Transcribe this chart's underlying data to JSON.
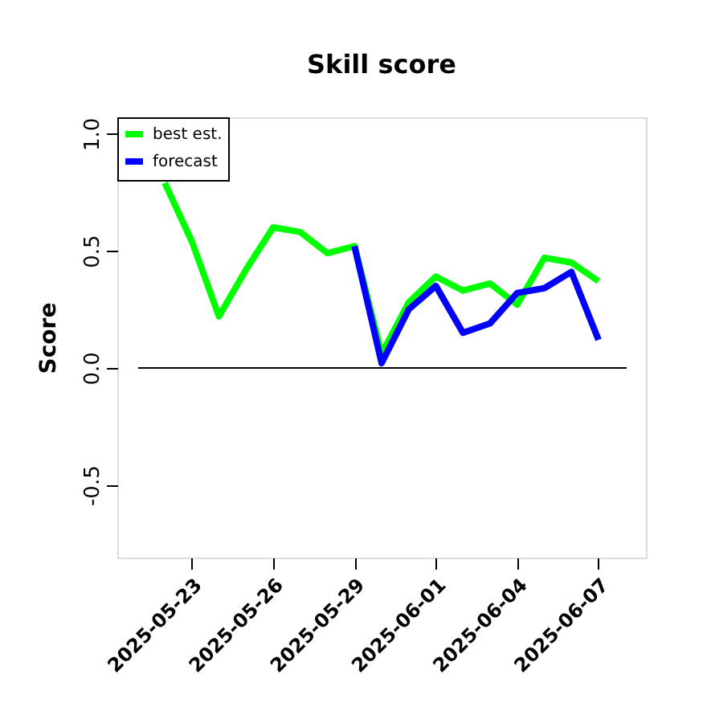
{
  "chart_data": {
    "type": "line",
    "title": "Skill score",
    "ylabel": "Score",
    "x": [
      "2025-05-22",
      "2025-05-23",
      "2025-05-24",
      "2025-05-25",
      "2025-05-26",
      "2025-05-27",
      "2025-05-28",
      "2025-05-29",
      "2025-05-30",
      "2025-05-31",
      "2025-06-01",
      "2025-06-02",
      "2025-06-03",
      "2025-06-04",
      "2025-06-05",
      "2025-06-06",
      "2025-06-07"
    ],
    "series": [
      {
        "name": "best est.",
        "color": "#00ff00",
        "values": [
          0.79,
          0.54,
          0.22,
          0.42,
          0.6,
          0.58,
          0.49,
          0.52,
          0.06,
          0.28,
          0.39,
          0.33,
          0.36,
          0.27,
          0.47,
          0.45,
          0.37
        ]
      },
      {
        "name": "forecast",
        "color": "#0000ff",
        "x": [
          "2025-05-29",
          "2025-05-30",
          "2025-05-31",
          "2025-06-01",
          "2025-06-02",
          "2025-06-03",
          "2025-06-04",
          "2025-06-05",
          "2025-06-06",
          "2025-06-07"
        ],
        "values": [
          0.52,
          0.02,
          0.25,
          0.35,
          0.15,
          0.19,
          0.32,
          0.34,
          0.41,
          0.12
        ]
      }
    ],
    "xlim": [
      "2025-05-20T06:00",
      "2025-06-08T18:00"
    ],
    "xticks": [
      "2025-05-23",
      "2025-05-26",
      "2025-05-29",
      "2025-06-01",
      "2025-06-04",
      "2025-06-07"
    ],
    "ylim": [
      -0.81,
      1.07
    ],
    "yticks": [
      -0.5,
      {
        "value": 0,
        "label": "0.0"
      },
      0.5,
      {
        "value": 1,
        "label": "1.0"
      }
    ],
    "ref_lines": [
      {
        "axis": "y",
        "value": 0,
        "color": "#000000"
      }
    ],
    "grid": false,
    "legend": "top left",
    "marker": "none",
    "line_style": "solid"
  }
}
